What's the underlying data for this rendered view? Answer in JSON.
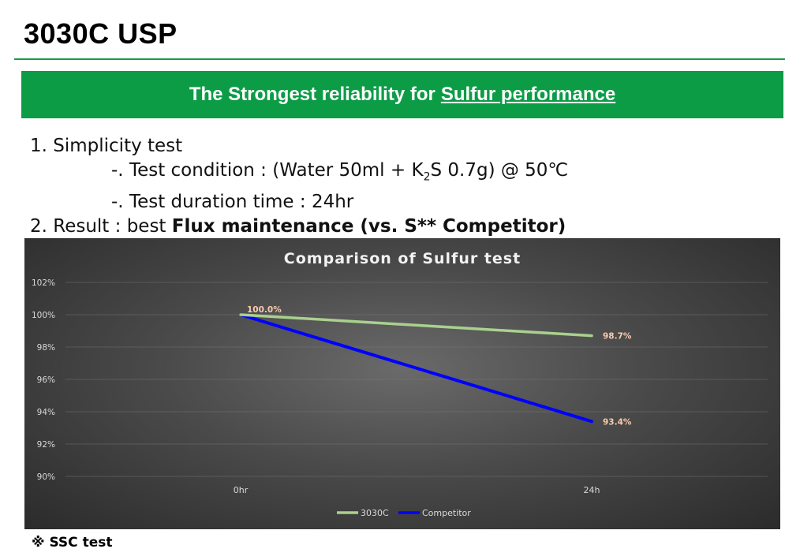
{
  "header": {
    "title": "3030C USP",
    "banner_prefix": "The Strongest reliability for",
    "banner_emphasis": "Sulfur performance"
  },
  "body": {
    "item1": "1. Simplicity test",
    "sub1_prefix": "-. Test condition : (Water 50ml + K",
    "sub1_subscript": "2",
    "sub1_suffix": "S 0.7g) @ 50℃",
    "sub2": "-. Test duration time : 24hr",
    "item2_prefix": "2. Result : best ",
    "item2_bold": "Flux maintenance (vs. S** Competitor)"
  },
  "footnote": "※ SSC test",
  "colors": {
    "brand_green": "#0c9c46",
    "series_3030c": "#a9d18e",
    "series_competitor": "#0000ff",
    "data_label": "#f8cbad"
  },
  "chart_data": {
    "type": "line",
    "title": "Comparison of Sulfur test",
    "categories": [
      "0hr",
      "24h"
    ],
    "y_ticks": [
      "102%",
      "100%",
      "98%",
      "96%",
      "94%",
      "92%",
      "90%"
    ],
    "ylim": [
      90,
      102
    ],
    "grid": true,
    "legend_position": "bottom",
    "series": [
      {
        "name": "3030C",
        "values": [
          100.0,
          98.7
        ],
        "labels": [
          "100.0%",
          "98.7%"
        ],
        "color": "#a9d18e"
      },
      {
        "name": "Competitor",
        "values": [
          100.0,
          93.4
        ],
        "labels": [
          "",
          "93.4%"
        ],
        "color": "#0000ff"
      }
    ]
  }
}
